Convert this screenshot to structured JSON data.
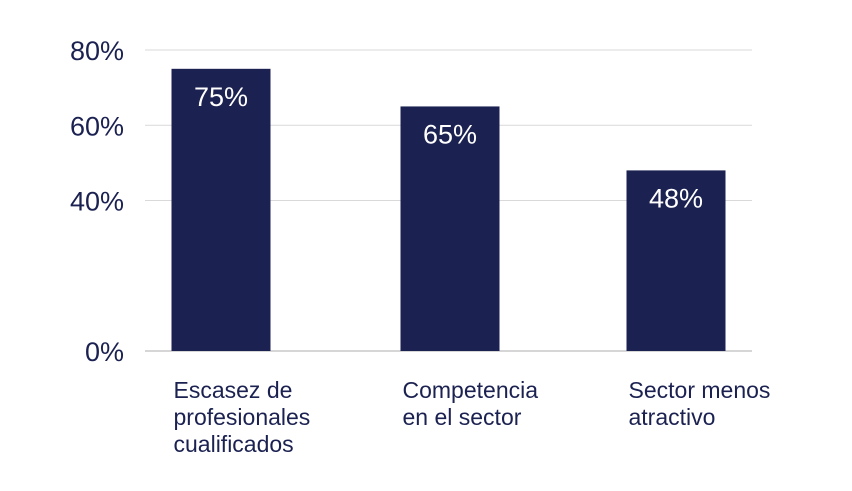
{
  "chart_data": {
    "type": "bar",
    "title": "",
    "xlabel": "",
    "ylabel": "",
    "categories": [
      [
        "Escasez de",
        "profesionales",
        "cualificados"
      ],
      [
        "Competencia",
        "en el sector"
      ],
      [
        "Sector menos",
        "atractivo"
      ]
    ],
    "values": [
      75,
      65,
      48
    ],
    "data_labels": [
      "75%",
      "65%",
      "48%"
    ],
    "y_ticks": [
      {
        "value": 0,
        "label": "0%"
      },
      {
        "value": 40,
        "label": "40%"
      },
      {
        "value": 60,
        "label": "60%"
      },
      {
        "value": 80,
        "label": "80%"
      }
    ],
    "ylim": [
      0,
      80
    ],
    "grid": true,
    "legend": "none",
    "colors": {
      "bar": "#1b2150",
      "bar_label": "#ffffff",
      "axis_text": "#1b2150",
      "grid": "#d9d9d9",
      "baseline": "#c8c8c8"
    }
  }
}
